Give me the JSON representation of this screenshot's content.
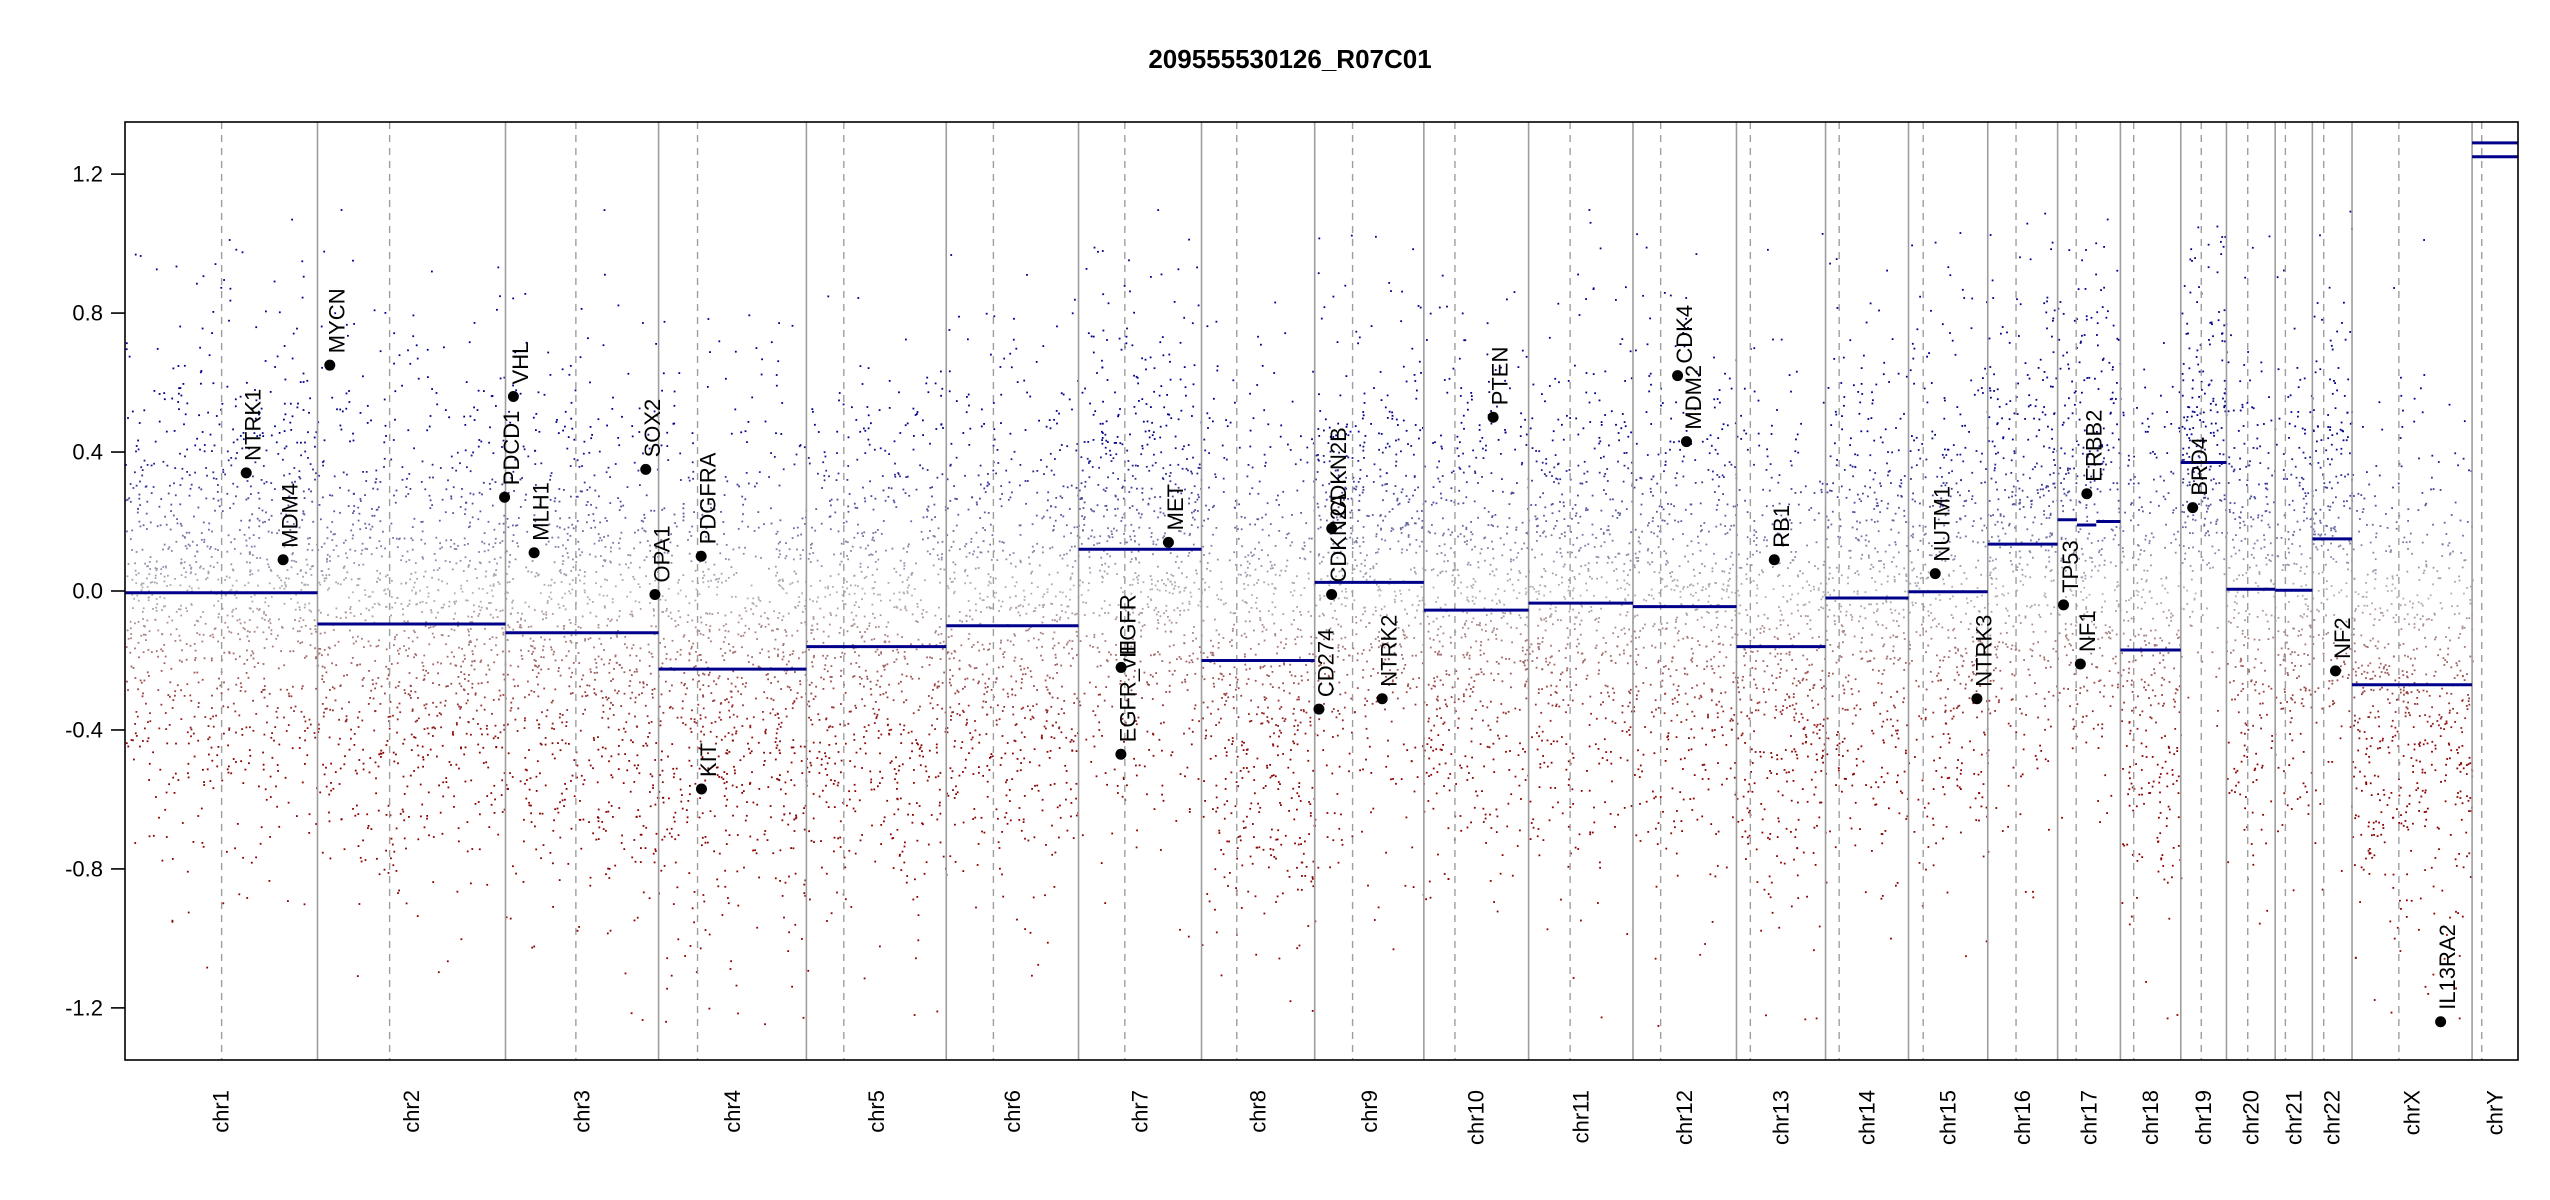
{
  "chart_data": {
    "type": "scatter",
    "title": "209555530126_R07C01",
    "xlabel": "",
    "ylabel": "",
    "ylim": [
      -1.35,
      1.35
    ],
    "yticks": [
      -1.2,
      -0.8,
      -0.4,
      0.0,
      0.4,
      0.8,
      1.2
    ],
    "ytick_labels": [
      "-1.2",
      "-0.8",
      "-0.4",
      "0.0",
      "0.4",
      "0.8",
      "1.2"
    ],
    "grid": false,
    "colors": {
      "gain": "#00008b",
      "loss": "#8b0000",
      "neutral": "#b4b4b4",
      "segment": "#00008b",
      "chrom_boundary": "#9e9e9e",
      "centromere": "#9e9e9e",
      "gene_point": "#000000"
    },
    "chromosomes": [
      {
        "name": "chr1",
        "size": 249.0,
        "centromere": 125.0,
        "segments": [
          {
            "start": 0,
            "end": 249.0,
            "value": -0.005
          }
        ],
        "points": [
          {
            "mean": 0.0,
            "sd": 0.36
          }
        ]
      },
      {
        "name": "chr2",
        "size": 243.2,
        "centromere": 93.3,
        "segments": [
          {
            "start": 0,
            "end": 243.2,
            "value": -0.095
          }
        ],
        "points": [
          {
            "mean": -0.09,
            "sd": 0.36
          }
        ]
      },
      {
        "name": "chr3",
        "size": 198.0,
        "centromere": 91.0,
        "segments": [
          {
            "start": 0,
            "end": 198.0,
            "value": -0.12
          }
        ],
        "points": [
          {
            "mean": -0.12,
            "sd": 0.36
          }
        ]
      },
      {
        "name": "chr4",
        "size": 191.2,
        "centromere": 50.4,
        "segments": [
          {
            "start": 0,
            "end": 191.2,
            "value": -0.225
          }
        ],
        "points": [
          {
            "mean": -0.22,
            "sd": 0.36
          }
        ]
      },
      {
        "name": "chr5",
        "size": 180.9,
        "centromere": 48.4,
        "segments": [
          {
            "start": 0,
            "end": 180.9,
            "value": -0.16
          }
        ],
        "points": [
          {
            "mean": -0.16,
            "sd": 0.36
          }
        ]
      },
      {
        "name": "chr6",
        "size": 171.1,
        "centromere": 61.0,
        "segments": [
          {
            "start": 0,
            "end": 171.1,
            "value": -0.1
          }
        ],
        "points": [
          {
            "mean": -0.1,
            "sd": 0.36
          }
        ]
      },
      {
        "name": "chr7",
        "size": 159.1,
        "centromere": 59.9,
        "segments": [
          {
            "start": 0,
            "end": 159.1,
            "value": 0.12
          }
        ],
        "points": [
          {
            "mean": 0.12,
            "sd": 0.36
          }
        ]
      },
      {
        "name": "chr8",
        "size": 146.4,
        "centromere": 45.6,
        "segments": [
          {
            "start": 0,
            "end": 146.4,
            "value": -0.2
          }
        ],
        "points": [
          {
            "mean": -0.2,
            "sd": 0.36
          }
        ]
      },
      {
        "name": "chr9",
        "size": 141.2,
        "centromere": 49.0,
        "segments": [
          {
            "start": 0,
            "end": 141.2,
            "value": 0.025
          }
        ],
        "points": [
          {
            "mean": 0.02,
            "sd": 0.36
          }
        ]
      },
      {
        "name": "chr10",
        "size": 135.5,
        "centromere": 40.2,
        "segments": [
          {
            "start": 0,
            "end": 135.5,
            "value": -0.055
          }
        ],
        "points": [
          {
            "mean": -0.05,
            "sd": 0.36
          }
        ]
      },
      {
        "name": "chr11",
        "size": 135.0,
        "centromere": 53.7,
        "segments": [
          {
            "start": 0,
            "end": 135.0,
            "value": -0.035
          }
        ],
        "points": [
          {
            "mean": -0.03,
            "sd": 0.36
          }
        ]
      },
      {
        "name": "chr12",
        "size": 133.9,
        "centromere": 35.8,
        "segments": [
          {
            "start": 0,
            "end": 133.9,
            "value": -0.045
          }
        ],
        "points": [
          {
            "mean": -0.04,
            "sd": 0.36
          }
        ]
      },
      {
        "name": "chr13",
        "size": 115.2,
        "centromere": 17.9,
        "segments": [
          {
            "start": 0,
            "end": 115.2,
            "value": -0.16
          }
        ],
        "points": [
          {
            "mean": -0.16,
            "sd": 0.36
          }
        ]
      },
      {
        "name": "chr14",
        "size": 107.3,
        "centromere": 17.6,
        "segments": [
          {
            "start": 0,
            "end": 107.3,
            "value": -0.02
          }
        ],
        "points": [
          {
            "mean": -0.02,
            "sd": 0.36
          }
        ]
      },
      {
        "name": "chr15",
        "size": 102.5,
        "centromere": 19.0,
        "segments": [
          {
            "start": 0,
            "end": 102.5,
            "value": -0.002
          }
        ],
        "points": [
          {
            "mean": 0.0,
            "sd": 0.36
          }
        ]
      },
      {
        "name": "chr16",
        "size": 90.4,
        "centromere": 36.6,
        "segments": [
          {
            "start": 0,
            "end": 90.4,
            "value": 0.135
          }
        ],
        "points": [
          {
            "mean": 0.13,
            "sd": 0.36
          }
        ]
      },
      {
        "name": "chr17",
        "size": 81.2,
        "centromere": 24.0,
        "segments": [
          {
            "start": 0,
            "end": 25.0,
            "value": 0.205
          },
          {
            "start": 25.0,
            "end": 50.0,
            "value": 0.19
          },
          {
            "start": 50.0,
            "end": 81.2,
            "value": 0.2
          }
        ],
        "points": [
          {
            "mean": 0.18,
            "sd": 0.36
          }
        ]
      },
      {
        "name": "chr18",
        "size": 78.1,
        "centromere": 17.2,
        "segments": [
          {
            "start": 0,
            "end": 78.1,
            "value": -0.17
          }
        ],
        "points": [
          {
            "mean": -0.17,
            "sd": 0.36
          }
        ]
      },
      {
        "name": "chr19",
        "size": 59.1,
        "centromere": 26.5,
        "segments": [
          {
            "start": 0,
            "end": 59.1,
            "value": 0.37
          }
        ],
        "points": [
          {
            "mean": 0.36,
            "sd": 0.3
          }
        ]
      },
      {
        "name": "chr20",
        "size": 63.0,
        "centromere": 27.5,
        "segments": [
          {
            "start": 0,
            "end": 63.0,
            "value": 0.005
          }
        ],
        "points": [
          {
            "mean": 0.0,
            "sd": 0.36
          }
        ]
      },
      {
        "name": "chr21",
        "size": 48.1,
        "centromere": 13.2,
        "segments": [
          {
            "start": 0,
            "end": 48.1,
            "value": 0.002
          }
        ],
        "points": [
          {
            "mean": 0.0,
            "sd": 0.36
          }
        ]
      },
      {
        "name": "chr22",
        "size": 51.3,
        "centromere": 14.7,
        "segments": [
          {
            "start": 0,
            "end": 51.3,
            "value": 0.15
          }
        ],
        "points": [
          {
            "mean": 0.15,
            "sd": 0.36
          }
        ]
      },
      {
        "name": "chrX",
        "size": 155.3,
        "centromere": 60.6,
        "segments": [
          {
            "start": 0,
            "end": 155.3,
            "value": -0.27
          }
        ],
        "points": [
          {
            "mean": -0.27,
            "sd": 0.36
          }
        ]
      },
      {
        "name": "chrY",
        "size": 59.4,
        "centromere": 12.5,
        "segments": [
          {
            "start": 0,
            "end": 59.4,
            "value": 1.29
          },
          {
            "start": 0,
            "end": 59.4,
            "value": 1.25
          }
        ],
        "points": []
      }
    ],
    "genes": [
      {
        "name": "NTRK1",
        "chrom": "chr1",
        "pos": 156.8,
        "value": 0.34
      },
      {
        "name": "MDM4",
        "chrom": "chr1",
        "pos": 204.5,
        "value": 0.09
      },
      {
        "name": "MYCN",
        "chrom": "chr2",
        "pos": 15.9,
        "value": 0.65
      },
      {
        "name": "PDCD1",
        "chrom": "chr2",
        "pos": 242.0,
        "value": 0.27
      },
      {
        "name": "VHL",
        "chrom": "chr3",
        "pos": 10.2,
        "value": 0.56
      },
      {
        "name": "MLH1",
        "chrom": "chr3",
        "pos": 37.0,
        "value": 0.11
      },
      {
        "name": "SOX2",
        "chrom": "chr3",
        "pos": 181.4,
        "value": 0.35
      },
      {
        "name": "OPA1",
        "chrom": "chr3",
        "pos": 193.3,
        "value": -0.01
      },
      {
        "name": "PDGFRA",
        "chrom": "chr4",
        "pos": 55.1,
        "value": 0.1
      },
      {
        "name": "KIT",
        "chrom": "chr4",
        "pos": 55.5,
        "value": -0.57
      },
      {
        "name": "MET",
        "chrom": "chr7",
        "pos": 116.3,
        "value": 0.14
      },
      {
        "name": "EGFR",
        "chrom": "chr7",
        "pos": 55.1,
        "value": -0.22
      },
      {
        "name": "EGFR_vIII",
        "chrom": "chr7",
        "pos": 54.8,
        "value": -0.47
      },
      {
        "name": "CDKN2B",
        "chrom": "chr9",
        "pos": 22.0,
        "value": 0.18
      },
      {
        "name": "CDKN2A",
        "chrom": "chr9",
        "pos": 21.9,
        "value": -0.01
      },
      {
        "name": "CD274",
        "chrom": "chr9",
        "pos": 5.5,
        "value": -0.34
      },
      {
        "name": "NTRK2",
        "chrom": "chr9",
        "pos": 87.3,
        "value": -0.31
      },
      {
        "name": "PTEN",
        "chrom": "chr10",
        "pos": 89.6,
        "value": 0.5
      },
      {
        "name": "CDK4",
        "chrom": "chr12",
        "pos": 57.7,
        "value": 0.62
      },
      {
        "name": "MDM2",
        "chrom": "chr12",
        "pos": 69.2,
        "value": 0.43
      },
      {
        "name": "RB1",
        "chrom": "chr13",
        "pos": 48.9,
        "value": 0.09
      },
      {
        "name": "NUTM1",
        "chrom": "chr15",
        "pos": 34.6,
        "value": 0.05
      },
      {
        "name": "NTRK3",
        "chrom": "chr15",
        "pos": 88.5,
        "value": -0.31
      },
      {
        "name": "TP53",
        "chrom": "chr17",
        "pos": 7.6,
        "value": -0.04
      },
      {
        "name": "NF1",
        "chrom": "chr17",
        "pos": 29.4,
        "value": -0.21
      },
      {
        "name": "ERBB2",
        "chrom": "chr17",
        "pos": 37.8,
        "value": 0.28
      },
      {
        "name": "BRD4",
        "chrom": "chr19",
        "pos": 15.4,
        "value": 0.24
      },
      {
        "name": "NF2",
        "chrom": "chr22",
        "pos": 29.9,
        "value": -0.23
      },
      {
        "name": "IL13RA2",
        "chrom": "chrX",
        "pos": 114.6,
        "value": -1.24
      }
    ]
  }
}
